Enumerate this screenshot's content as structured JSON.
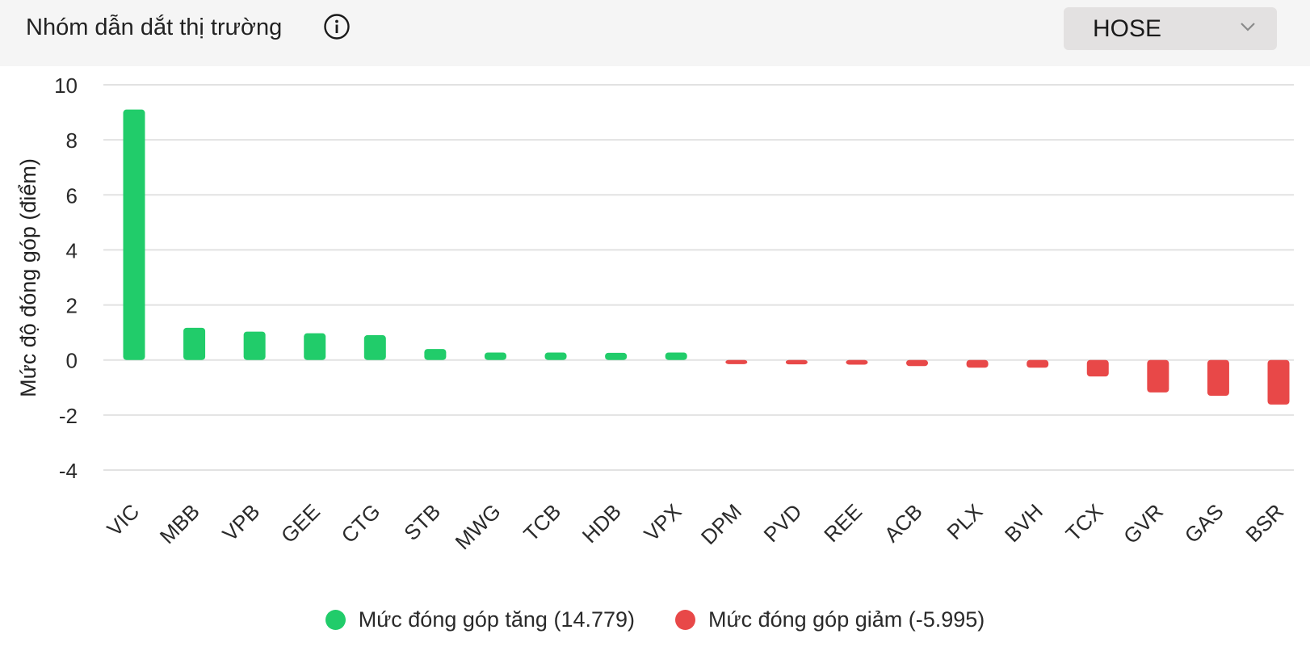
{
  "header": {
    "title": "Nhóm dẫn dắt thị trường",
    "info_icon": "info-circle-icon",
    "exchange_select": {
      "value": "HOSE",
      "icon": "chevron-down-icon"
    }
  },
  "colors": {
    "positive": "#21cc6a",
    "negative": "#e84848",
    "grid": "#e2e2e2",
    "header_bg": "#f5f5f5",
    "dropdown_bg": "#e3e1e1"
  },
  "chart_data": {
    "type": "bar",
    "title": "",
    "xlabel": "",
    "ylabel": "Mức độ đóng góp (điểm)",
    "ylim": [
      -4,
      10
    ],
    "yticks": [
      10,
      8,
      6,
      4,
      2,
      0,
      -2,
      -4
    ],
    "grid": true,
    "legend_position": "bottom",
    "categories": [
      "VIC",
      "MBB",
      "VPB",
      "GEE",
      "CTG",
      "STB",
      "MWG",
      "TCB",
      "HDB",
      "VPX",
      "DPM",
      "PVD",
      "REE",
      "ACB",
      "PLX",
      "BVH",
      "TCX",
      "GVR",
      "GAS",
      "BSR"
    ],
    "values": [
      9.1,
      1.17,
      1.03,
      0.97,
      0.9,
      0.4,
      0.27,
      0.27,
      0.26,
      0.27,
      -0.15,
      -0.16,
      -0.17,
      -0.22,
      -0.28,
      -0.28,
      -0.6,
      -1.18,
      -1.3,
      -1.62
    ],
    "series": [
      {
        "name": "Mức đóng góp tăng (14.779)",
        "color": "#21cc6a"
      },
      {
        "name": "Mức đóng góp giảm (-5.995)",
        "color": "#e84848"
      }
    ]
  }
}
